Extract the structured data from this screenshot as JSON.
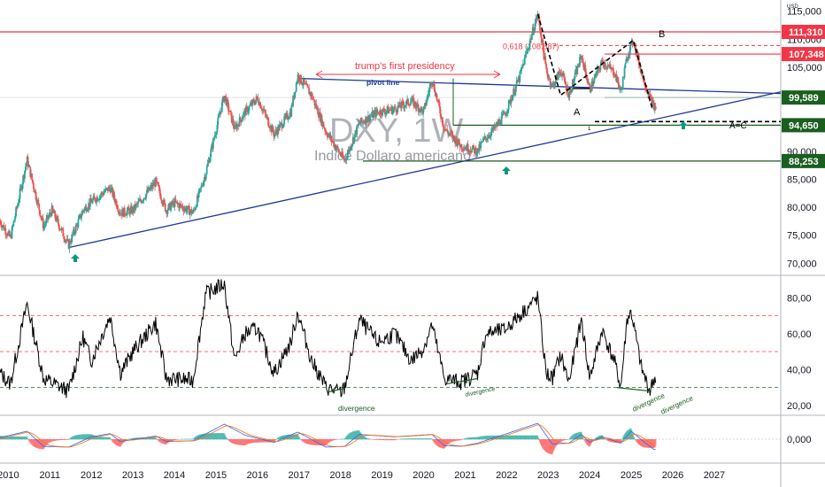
{
  "chart_data": {
    "type": "candlestick",
    "symbol": "DXY, 1W",
    "description": "Indice Dollaro americano",
    "currency": "USD",
    "price_axis": {
      "min": 68000,
      "max": 117000,
      "ticks": [
        115000,
        110000,
        105000,
        100000,
        95000,
        90000,
        85000,
        80000,
        75000,
        70000
      ],
      "tick_labels": [
        "115,000",
        "110,000",
        "105,000",
        "100,000",
        "95,000",
        "90,000",
        "85,000",
        "80,000",
        "75,000",
        "70,000"
      ]
    },
    "time_axis": {
      "start_year": 2009.8,
      "end_year": 2028.6,
      "ticks": [
        2010,
        2011,
        2012,
        2013,
        2014,
        2015,
        2016,
        2017,
        2018,
        2019,
        2020,
        2021,
        2022,
        2023,
        2024,
        2025,
        2026,
        2027
      ],
      "tick_labels": [
        "2010",
        "2011",
        "2012",
        "2013",
        "2014",
        "2015",
        "2016",
        "2017",
        "2018",
        "2019",
        "2020",
        "2021",
        "2022",
        "2023",
        "2024",
        "2025",
        "2026",
        "2027"
      ]
    },
    "price_anchors": [
      [
        2009.8,
        77.5
      ],
      [
        2010.05,
        74.5
      ],
      [
        2010.45,
        88.5
      ],
      [
        2010.85,
        76.5
      ],
      [
        2011.05,
        79.5
      ],
      [
        2011.45,
        73.2
      ],
      [
        2011.8,
        79.5
      ],
      [
        2012.0,
        81.0
      ],
      [
        2012.45,
        83.5
      ],
      [
        2012.7,
        79.0
      ],
      [
        2013.0,
        79.5
      ],
      [
        2013.55,
        84.5
      ],
      [
        2013.8,
        79.5
      ],
      [
        2014.0,
        80.8
      ],
      [
        2014.45,
        79.0
      ],
      [
        2014.75,
        86.0
      ],
      [
        2015.2,
        100.0
      ],
      [
        2015.45,
        94.0
      ],
      [
        2015.7,
        97.0
      ],
      [
        2016.0,
        99.5
      ],
      [
        2016.4,
        93.0
      ],
      [
        2016.8,
        97.0
      ],
      [
        2016.97,
        103.5
      ],
      [
        2017.3,
        100.0
      ],
      [
        2017.65,
        93.5
      ],
      [
        2018.1,
        88.3
      ],
      [
        2018.45,
        95.0
      ],
      [
        2018.9,
        97.0
      ],
      [
        2019.3,
        97.5
      ],
      [
        2019.7,
        99.0
      ],
      [
        2020.0,
        97.0
      ],
      [
        2020.2,
        103.0
      ],
      [
        2020.5,
        94.0
      ],
      [
        2020.9,
        91.0
      ],
      [
        2021.3,
        90.0
      ],
      [
        2021.45,
        92.0
      ],
      [
        2021.7,
        94.0
      ],
      [
        2021.95,
        96.5
      ],
      [
        2022.3,
        103.0
      ],
      [
        2022.75,
        114.5
      ],
      [
        2022.95,
        104.5
      ],
      [
        2023.1,
        101.5
      ],
      [
        2023.3,
        104.5
      ],
      [
        2023.5,
        100.0
      ],
      [
        2023.8,
        107.0
      ],
      [
        2024.0,
        101.0
      ],
      [
        2024.3,
        106.0
      ],
      [
        2024.6,
        104.0
      ],
      [
        2024.75,
        100.5
      ],
      [
        2024.9,
        107.0
      ],
      [
        2025.05,
        109.8
      ],
      [
        2025.25,
        104.0
      ],
      [
        2025.45,
        99.5
      ],
      [
        2025.55,
        97.8
      ]
    ],
    "horizontal_levels": [
      {
        "value": 111310,
        "label": "111,310",
        "color": "#f23645",
        "style": "solid"
      },
      {
        "value": 107348,
        "label": "107,348",
        "color": "#f23645",
        "style": "solid"
      },
      {
        "value": 99589,
        "label": "99,589",
        "color": "#1b5e20",
        "style": "solid"
      },
      {
        "value": 94650,
        "label": "94,650",
        "color": "#1b5e20",
        "style": "solid"
      },
      {
        "value": 88253,
        "label": "88,253",
        "color": "#1b5e20",
        "style": "solid"
      }
    ],
    "fib_level": {
      "label": "0,618 (108,887)",
      "value": 108887
    },
    "annotations": {
      "presidency": "trump's first presidency",
      "pivot_line": "pivot line",
      "wave_a": "A",
      "wave_b": "B",
      "wave_ac": "A=C",
      "wave_one": "1",
      "divergence": "divergence"
    },
    "rsi_axis": {
      "min": 15,
      "max": 92,
      "ticks": [
        80,
        60,
        40,
        20
      ],
      "tick_labels": [
        "80,00",
        "60,00",
        "40,00",
        "20,00"
      ],
      "overbought": 70,
      "mid": 50,
      "oversold": 30
    },
    "rsi_anchors": [
      [
        2009.8,
        38
      ],
      [
        2010.05,
        32
      ],
      [
        2010.45,
        77
      ],
      [
        2010.85,
        35
      ],
      [
        2011.45,
        28
      ],
      [
        2011.8,
        58
      ],
      [
        2012.0,
        45
      ],
      [
        2012.45,
        70
      ],
      [
        2012.7,
        38
      ],
      [
        2013.0,
        50
      ],
      [
        2013.55,
        66
      ],
      [
        2013.8,
        35
      ],
      [
        2014.45,
        34
      ],
      [
        2014.75,
        82
      ],
      [
        2015.2,
        88
      ],
      [
        2015.45,
        45
      ],
      [
        2015.7,
        60
      ],
      [
        2016.0,
        63
      ],
      [
        2016.4,
        38
      ],
      [
        2016.8,
        55
      ],
      [
        2016.97,
        72
      ],
      [
        2017.3,
        45
      ],
      [
        2017.65,
        30
      ],
      [
        2018.0,
        27
      ],
      [
        2018.1,
        30
      ],
      [
        2018.45,
        68
      ],
      [
        2018.9,
        55
      ],
      [
        2019.3,
        60
      ],
      [
        2019.7,
        45
      ],
      [
        2020.0,
        52
      ],
      [
        2020.2,
        65
      ],
      [
        2020.5,
        35
      ],
      [
        2020.9,
        33
      ],
      [
        2021.3,
        38
      ],
      [
        2021.5,
        60
      ],
      [
        2021.95,
        62
      ],
      [
        2022.3,
        70
      ],
      [
        2022.75,
        80
      ],
      [
        2022.95,
        38
      ],
      [
        2023.1,
        35
      ],
      [
        2023.3,
        48
      ],
      [
        2023.5,
        33
      ],
      [
        2023.8,
        68
      ],
      [
        2024.0,
        35
      ],
      [
        2024.3,
        62
      ],
      [
        2024.6,
        44
      ],
      [
        2024.75,
        30
      ],
      [
        2024.9,
        68
      ],
      [
        2025.0,
        72
      ],
      [
        2025.25,
        40
      ],
      [
        2025.45,
        28
      ],
      [
        2025.55,
        35
      ]
    ],
    "macd_axis": {
      "ticks": [
        0
      ],
      "tick_labels": [
        "0,000"
      ]
    },
    "macd_anchors": [
      [
        2009.8,
        0.2
      ],
      [
        2010.45,
        1.0
      ],
      [
        2010.85,
        -0.9
      ],
      [
        2011.45,
        -1.0
      ],
      [
        2012.0,
        0.3
      ],
      [
        2012.45,
        0.7
      ],
      [
        2012.7,
        -0.3
      ],
      [
        2013.55,
        0.4
      ],
      [
        2013.8,
        -0.3
      ],
      [
        2014.45,
        -0.2
      ],
      [
        2015.2,
        1.9
      ],
      [
        2015.7,
        0.5
      ],
      [
        2016.4,
        -0.4
      ],
      [
        2016.97,
        0.9
      ],
      [
        2017.65,
        -1.0
      ],
      [
        2018.1,
        -0.9
      ],
      [
        2018.45,
        0.6
      ],
      [
        2019.3,
        0.3
      ],
      [
        2020.2,
        0.6
      ],
      [
        2020.5,
        -0.8
      ],
      [
        2020.9,
        -0.9
      ],
      [
        2021.3,
        -0.5
      ],
      [
        2021.95,
        0.6
      ],
      [
        2022.75,
        2.0
      ],
      [
        2023.1,
        -0.6
      ],
      [
        2023.5,
        -0.5
      ],
      [
        2023.8,
        0.6
      ],
      [
        2024.0,
        -0.4
      ],
      [
        2024.3,
        0.3
      ],
      [
        2024.75,
        -0.5
      ],
      [
        2025.0,
        1.0
      ],
      [
        2025.3,
        -0.3
      ],
      [
        2025.55,
        -1.3
      ]
    ]
  }
}
